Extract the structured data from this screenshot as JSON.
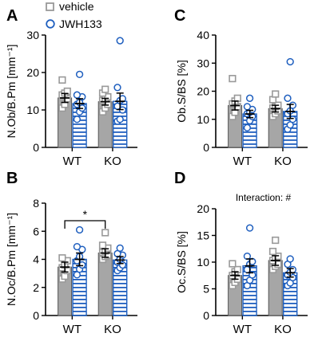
{
  "legend": {
    "placement": "top-left",
    "entries": [
      {
        "name": "vehicle",
        "marker": "square",
        "color": "#999999"
      },
      {
        "name": "JWH133",
        "marker": "circle",
        "color": "#1f5fbf"
      }
    ]
  },
  "colors": {
    "vehicle_bar": "#a6a6a6",
    "vehicle_point": "#999999",
    "jwh_stroke": "#1f5fbf",
    "jwh_fill": "#ffffff"
  },
  "chart_data": [
    {
      "panel": "A",
      "type": "bar",
      "ylabel": "N.Ob/B.Pm [mm⁻¹]",
      "ylim": [
        0,
        30
      ],
      "yticks": [
        0,
        10,
        20,
        30
      ],
      "categories": [
        "WT",
        "KO"
      ],
      "annotation": "",
      "series": [
        {
          "name": "vehicle",
          "values": [
            13.2,
            12.2
          ],
          "sem": [
            1.2,
            0.9
          ],
          "points": [
            [
              10.5,
              11.5,
              13.0,
              14.0,
              14.5,
              15.0,
              18.0
            ],
            [
              9.5,
              10.5,
              11.5,
              12.5,
              13.0,
              13.5,
              14.5,
              15.5
            ]
          ]
        },
        {
          "name": "JWH133",
          "values": [
            11.7,
            12.3
          ],
          "sem": [
            1.3,
            2.2
          ],
          "points": [
            [
              7.5,
              9.5,
              10.5,
              11.5,
              12.0,
              13.5,
              14.0,
              19.5
            ],
            [
              7.0,
              7.5,
              10.0,
              11.0,
              12.5,
              13.0,
              16.0,
              28.5
            ]
          ]
        }
      ]
    },
    {
      "panel": "B",
      "type": "bar",
      "ylabel": "N.Oc/B.Pm [mm⁻¹]",
      "ylim": [
        0,
        8
      ],
      "yticks": [
        0,
        2,
        4,
        6,
        8
      ],
      "categories": [
        "WT",
        "KO"
      ],
      "annotation": "",
      "significance": {
        "label": "*",
        "from": "WT vehicle",
        "to": "KO vehicle"
      },
      "series": [
        {
          "name": "vehicle",
          "values": [
            3.45,
            4.45
          ],
          "sem": [
            0.35,
            0.3
          ],
          "points": [
            [
              2.6,
              2.8,
              3.2,
              3.4,
              3.6,
              3.9,
              4.1
            ],
            [
              4.0,
              4.2,
              4.3,
              4.5,
              4.6,
              4.8,
              5.0,
              5.9
            ]
          ]
        },
        {
          "name": "JWH133",
          "values": [
            4.0,
            3.95
          ],
          "sem": [
            0.45,
            0.25
          ],
          "points": [
            [
              2.9,
              3.3,
              3.6,
              3.9,
              4.2,
              4.7,
              4.9,
              6.1
            ],
            [
              3.2,
              3.4,
              3.6,
              3.8,
              4.0,
              4.3,
              4.4,
              4.8
            ]
          ]
        }
      ]
    },
    {
      "panel": "C",
      "type": "bar",
      "ylabel": "Ob.S/BS [%]",
      "ylim": [
        0,
        40
      ],
      "yticks": [
        0,
        10,
        20,
        30,
        40
      ],
      "categories": [
        "WT",
        "KO"
      ],
      "annotation": "",
      "series": [
        {
          "name": "vehicle",
          "values": [
            14.9,
            13.8
          ],
          "sem": [
            1.6,
            1.2
          ],
          "points": [
            [
              11.0,
              12.5,
              14.5,
              15.5,
              16.5,
              17.5,
              24.5
            ],
            [
              11.0,
              12.0,
              13.0,
              14.0,
              14.5,
              15.0,
              17.0,
              19.0
            ]
          ]
        },
        {
          "name": "JWH133",
          "values": [
            11.9,
            12.8
          ],
          "sem": [
            1.3,
            2.5
          ],
          "points": [
            [
              7.0,
              9.5,
              11.0,
              12.0,
              12.5,
              13.5,
              14.5,
              17.5
            ],
            [
              6.5,
              8.0,
              10.0,
              12.0,
              13.0,
              15.0,
              17.5,
              30.5
            ]
          ]
        }
      ]
    },
    {
      "panel": "D",
      "type": "bar",
      "ylabel": "Oc.S/BS [%]",
      "ylim": [
        0,
        20
      ],
      "yticks": [
        0,
        5,
        10,
        15,
        20
      ],
      "categories": [
        "WT",
        "KO"
      ],
      "annotation": "Interaction: #",
      "series": [
        {
          "name": "vehicle",
          "values": [
            7.5,
            10.3
          ],
          "sem": [
            0.7,
            0.9
          ],
          "points": [
            [
              5.6,
              6.2,
              6.8,
              7.5,
              8.2,
              8.6,
              9.7
            ],
            [
              8.6,
              9.2,
              9.6,
              10.3,
              10.8,
              11.1,
              12.0,
              14.1
            ]
          ]
        },
        {
          "name": "JWH133",
          "values": [
            9.3,
            8.0
          ],
          "sem": [
            1.3,
            0.8
          ],
          "points": [
            [
              5.6,
              6.6,
              7.6,
              8.6,
              9.6,
              10.1,
              11.1,
              16.4
            ],
            [
              5.6,
              6.1,
              7.1,
              7.6,
              8.1,
              8.6,
              9.6,
              10.6
            ]
          ]
        }
      ]
    }
  ]
}
